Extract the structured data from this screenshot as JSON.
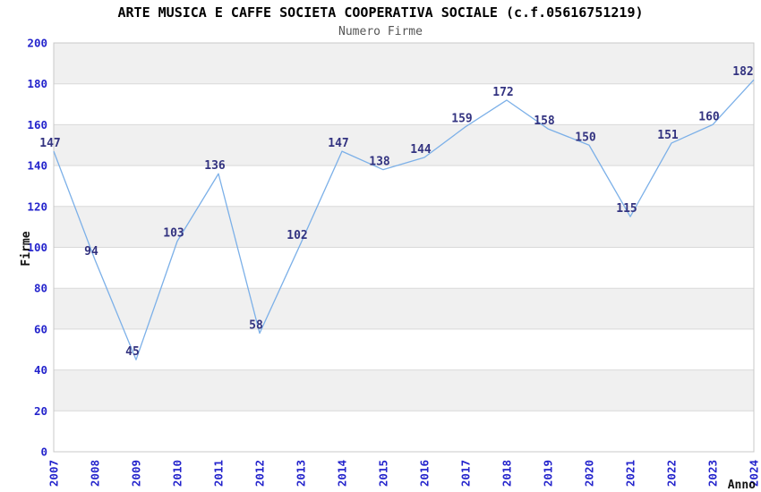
{
  "chart_data": {
    "type": "line",
    "title": "ARTE MUSICA E CAFFE SOCIETA COOPERATIVA SOCIALE (c.f.05616751219)",
    "subtitle": "Numero Firme",
    "xlabel": "Anno",
    "ylabel": "Firme",
    "categories": [
      "2007",
      "2008",
      "2009",
      "2010",
      "2011",
      "2012",
      "2013",
      "2014",
      "2015",
      "2016",
      "2017",
      "2018",
      "2019",
      "2020",
      "2021",
      "2022",
      "2023",
      "2024"
    ],
    "values": [
      147,
      94,
      45,
      103,
      136,
      58,
      102,
      147,
      138,
      144,
      159,
      172,
      158,
      150,
      115,
      151,
      160,
      182
    ],
    "ylim": [
      0,
      200
    ],
    "ytick_step": 20,
    "grid": "horizontal-bands-alternating",
    "legend_position": "none",
    "marker": "none",
    "colors": {
      "line": "#7cb0e8",
      "data_label": "#333380",
      "axis_tick_label": "#2424cc",
      "axis_title": "#111111",
      "band_gray": "#f0f0f0",
      "band_white": "#ffffff",
      "gridline": "#d9d9d9",
      "plot_border": "#c8c8c8",
      "title": "#000000",
      "subtitle": "#555555"
    }
  }
}
